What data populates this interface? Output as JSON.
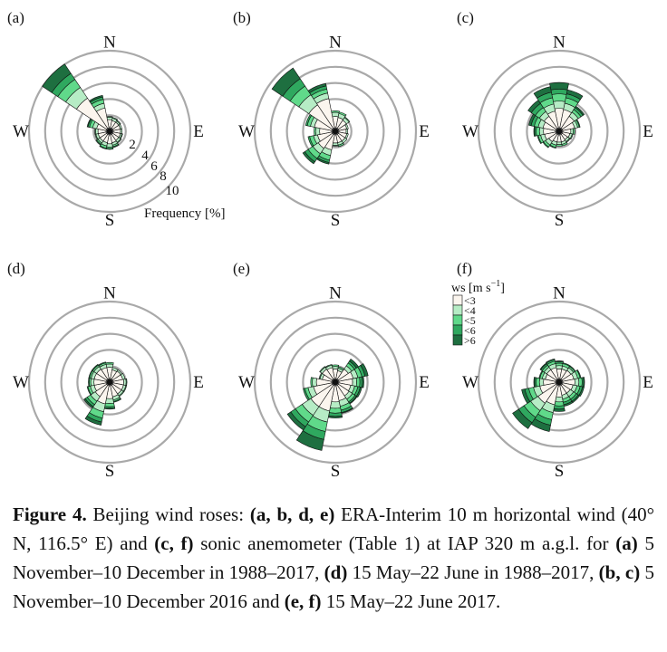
{
  "chart_data": [
    {
      "type": "windrose",
      "panel": "(a)",
      "compass": [
        "N",
        "E",
        "S",
        "W"
      ],
      "rings": [
        2,
        4,
        6,
        8,
        10
      ],
      "ring_labels_shown": true,
      "axis_label": "Frequency [%]",
      "bins": [
        "<3",
        "<4",
        "<5",
        "<6",
        ">6"
      ],
      "directions": [
        {
          "dir": 0,
          "values": [
            1.0,
            0.3,
            0.1,
            0.0,
            0.0
          ]
        },
        {
          "dir": 22.5,
          "values": [
            0.9,
            0.3,
            0.1,
            0.0,
            0.0
          ]
        },
        {
          "dir": 45,
          "values": [
            0.9,
            0.2,
            0.1,
            0.0,
            0.0
          ]
        },
        {
          "dir": 67.5,
          "values": [
            0.9,
            0.2,
            0.0,
            0.0,
            0.0
          ]
        },
        {
          "dir": 90,
          "values": [
            0.9,
            0.2,
            0.0,
            0.0,
            0.0
          ]
        },
        {
          "dir": 112.5,
          "values": [
            0.9,
            0.2,
            0.1,
            0.0,
            0.0
          ]
        },
        {
          "dir": 135,
          "values": [
            0.9,
            0.3,
            0.1,
            0.0,
            0.0
          ]
        },
        {
          "dir": 157.5,
          "values": [
            1.0,
            0.3,
            0.2,
            0.1,
            0.0
          ]
        },
        {
          "dir": 180,
          "values": [
            1.1,
            0.4,
            0.2,
            0.1,
            0.0
          ]
        },
        {
          "dir": 202.5,
          "values": [
            1.0,
            0.4,
            0.3,
            0.1,
            0.0
          ]
        },
        {
          "dir": 225,
          "values": [
            1.0,
            0.3,
            0.2,
            0.1,
            0.0
          ]
        },
        {
          "dir": 247.5,
          "values": [
            1.0,
            0.3,
            0.1,
            0.0,
            0.0
          ]
        },
        {
          "dir": 270,
          "values": [
            1.0,
            0.3,
            0.1,
            0.0,
            0.0
          ]
        },
        {
          "dir": 292.5,
          "values": [
            1.2,
            0.5,
            0.4,
            0.2,
            0.1
          ]
        },
        {
          "dir": 315,
          "values": [
            4.5,
            1.6,
            1.2,
            0.9,
            1.4
          ]
        },
        {
          "dir": 337.5,
          "values": [
            2.5,
            0.6,
            0.5,
            0.3,
            0.2
          ]
        }
      ]
    },
    {
      "type": "windrose",
      "panel": "(b)",
      "compass": [
        "N",
        "E",
        "S",
        "W"
      ],
      "rings": [
        2,
        4,
        6,
        8,
        10
      ],
      "bins": [
        "<3",
        "<4",
        "<5",
        "<6",
        ">6"
      ],
      "directions": [
        {
          "dir": 0,
          "values": [
            1.4,
            0.5,
            0.2,
            0.0,
            0.0
          ]
        },
        {
          "dir": 22.5,
          "values": [
            1.3,
            0.5,
            0.2,
            0.0,
            0.0
          ]
        },
        {
          "dir": 45,
          "values": [
            1.2,
            0.4,
            0.1,
            0.0,
            0.0
          ]
        },
        {
          "dir": 67.5,
          "values": [
            1.0,
            0.2,
            0.0,
            0.0,
            0.0
          ]
        },
        {
          "dir": 90,
          "values": [
            0.9,
            0.2,
            0.0,
            0.0,
            0.0
          ]
        },
        {
          "dir": 112.5,
          "values": [
            1.0,
            0.2,
            0.0,
            0.0,
            0.0
          ]
        },
        {
          "dir": 135,
          "values": [
            1.0,
            0.3,
            0.0,
            0.0,
            0.0
          ]
        },
        {
          "dir": 157.5,
          "values": [
            1.0,
            0.3,
            0.2,
            0.0,
            0.0
          ]
        },
        {
          "dir": 180,
          "values": [
            1.0,
            0.3,
            0.1,
            0.0,
            0.0
          ]
        },
        {
          "dir": 202.5,
          "values": [
            1.9,
            0.7,
            0.6,
            0.3,
            0.2
          ]
        },
        {
          "dir": 225,
          "values": [
            2.1,
            0.8,
            0.7,
            0.5,
            0.3
          ]
        },
        {
          "dir": 247.5,
          "values": [
            1.8,
            0.5,
            0.5,
            0.2,
            0.0
          ]
        },
        {
          "dir": 270,
          "values": [
            1.5,
            0.5,
            0.2,
            0.0,
            0.0
          ]
        },
        {
          "dir": 292.5,
          "values": [
            2.2,
            0.5,
            0.4,
            0.2,
            0.0
          ]
        },
        {
          "dir": 315,
          "values": [
            3.5,
            1.5,
            1.3,
            1.1,
            1.6
          ]
        },
        {
          "dir": 337.5,
          "values": [
            3.7,
            0.7,
            0.5,
            0.4,
            0.3
          ]
        }
      ]
    },
    {
      "type": "windrose",
      "panel": "(c)",
      "compass": [
        "N",
        "E",
        "S",
        "W"
      ],
      "rings": [
        2,
        4,
        6,
        8,
        10
      ],
      "bins": [
        "<3",
        "<4",
        "<5",
        "<6",
        ">6"
      ],
      "directions": [
        {
          "dir": 0,
          "values": [
            2.4,
            0.9,
            0.9,
            0.6,
            0.8
          ]
        },
        {
          "dir": 22.5,
          "values": [
            2.3,
            0.8,
            0.7,
            0.5,
            0.5
          ]
        },
        {
          "dir": 45,
          "values": [
            1.8,
            0.6,
            0.4,
            0.3,
            0.2
          ]
        },
        {
          "dir": 67.5,
          "values": [
            1.5,
            0.4,
            0.2,
            0.1,
            0.0
          ]
        },
        {
          "dir": 90,
          "values": [
            1.0,
            0.3,
            0.2,
            0.0,
            0.0
          ]
        },
        {
          "dir": 112.5,
          "values": [
            0.9,
            0.3,
            0.1,
            0.0,
            0.0
          ]
        },
        {
          "dir": 135,
          "values": [
            0.8,
            0.3,
            0.1,
            0.0,
            0.0
          ]
        },
        {
          "dir": 157.5,
          "values": [
            0.9,
            0.3,
            0.2,
            0.0,
            0.0
          ]
        },
        {
          "dir": 180,
          "values": [
            0.9,
            0.3,
            0.2,
            0.0,
            0.0
          ]
        },
        {
          "dir": 202.5,
          "values": [
            0.9,
            0.4,
            0.3,
            0.1,
            0.0
          ]
        },
        {
          "dir": 225,
          "values": [
            1.1,
            0.5,
            0.3,
            0.1,
            0.0
          ]
        },
        {
          "dir": 247.5,
          "values": [
            1.4,
            0.5,
            0.3,
            0.1,
            0.0
          ]
        },
        {
          "dir": 270,
          "values": [
            1.5,
            0.5,
            0.4,
            0.2,
            0.1
          ]
        },
        {
          "dir": 292.5,
          "values": [
            1.6,
            0.6,
            0.5,
            0.4,
            0.3
          ]
        },
        {
          "dir": 315,
          "values": [
            1.8,
            0.7,
            0.6,
            0.6,
            0.5
          ]
        },
        {
          "dir": 337.5,
          "values": [
            2.1,
            0.9,
            0.8,
            0.7,
            0.7
          ]
        }
      ]
    },
    {
      "type": "windrose",
      "panel": "(d)",
      "compass": [
        "N",
        "E",
        "S",
        "W"
      ],
      "rings": [
        2,
        4,
        6,
        8,
        10
      ],
      "bins": [
        "<3",
        "<4",
        "<5",
        "<6",
        ">6"
      ],
      "directions": [
        {
          "dir": 0,
          "values": [
            1.4,
            0.4,
            0.2,
            0.0,
            0.0
          ]
        },
        {
          "dir": 22.5,
          "values": [
            1.1,
            0.3,
            0.0,
            0.0,
            0.0
          ]
        },
        {
          "dir": 45,
          "values": [
            1.2,
            0.2,
            0.0,
            0.0,
            0.0
          ]
        },
        {
          "dir": 67.5,
          "values": [
            1.2,
            0.3,
            0.0,
            0.0,
            0.0
          ]
        },
        {
          "dir": 90,
          "values": [
            1.3,
            0.3,
            0.1,
            0.0,
            0.0
          ]
        },
        {
          "dir": 112.5,
          "values": [
            1.3,
            0.3,
            0.1,
            0.0,
            0.0
          ]
        },
        {
          "dir": 135,
          "values": [
            1.3,
            0.3,
            0.1,
            0.0,
            0.0
          ]
        },
        {
          "dir": 157.5,
          "values": [
            1.4,
            0.4,
            0.2,
            0.1,
            0.0
          ]
        },
        {
          "dir": 180,
          "values": [
            1.6,
            0.6,
            0.4,
            0.2,
            0.1
          ]
        },
        {
          "dir": 202.5,
          "values": [
            2.3,
            1.0,
            0.8,
            0.5,
            0.4
          ]
        },
        {
          "dir": 225,
          "values": [
            1.7,
            0.7,
            0.5,
            0.3,
            0.2
          ]
        },
        {
          "dir": 247.5,
          "values": [
            1.5,
            0.5,
            0.3,
            0.1,
            0.0
          ]
        },
        {
          "dir": 270,
          "values": [
            1.5,
            0.4,
            0.2,
            0.1,
            0.0
          ]
        },
        {
          "dir": 292.5,
          "values": [
            1.5,
            0.4,
            0.2,
            0.1,
            0.0
          ]
        },
        {
          "dir": 315,
          "values": [
            1.5,
            0.4,
            0.2,
            0.1,
            0.0
          ]
        },
        {
          "dir": 337.5,
          "values": [
            1.4,
            0.4,
            0.2,
            0.1,
            0.0
          ]
        }
      ]
    },
    {
      "type": "windrose",
      "panel": "(e)",
      "compass": [
        "N",
        "E",
        "S",
        "W"
      ],
      "rings": [
        2,
        4,
        6,
        8,
        10
      ],
      "bins": [
        "<3",
        "<4",
        "<5",
        "<6",
        ">6"
      ],
      "directions": [
        {
          "dir": 0,
          "values": [
            1.2,
            0.3,
            0.2,
            0.0,
            0.0
          ]
        },
        {
          "dir": 22.5,
          "values": [
            1.0,
            0.3,
            0.2,
            0.0,
            0.0
          ]
        },
        {
          "dir": 45,
          "values": [
            1.5,
            0.5,
            0.4,
            0.3,
            0.3
          ]
        },
        {
          "dir": 67.5,
          "values": [
            1.8,
            0.6,
            0.5,
            0.4,
            0.4
          ]
        },
        {
          "dir": 90,
          "values": [
            1.7,
            0.5,
            0.4,
            0.3,
            0.2
          ]
        },
        {
          "dir": 112.5,
          "values": [
            1.5,
            0.5,
            0.4,
            0.3,
            0.2
          ]
        },
        {
          "dir": 135,
          "values": [
            1.6,
            0.5,
            0.4,
            0.2,
            0.1
          ]
        },
        {
          "dir": 157.5,
          "values": [
            1.9,
            0.7,
            0.5,
            0.3,
            0.1
          ]
        },
        {
          "dir": 180,
          "values": [
            2.0,
            0.8,
            0.6,
            0.4,
            0.2
          ]
        },
        {
          "dir": 202.5,
          "values": [
            3.2,
            1.4,
            1.2,
            1.0,
            1.4
          ]
        },
        {
          "dir": 225,
          "values": [
            3.2,
            1.3,
            1.0,
            0.7,
            0.5
          ]
        },
        {
          "dir": 247.5,
          "values": [
            2.3,
            0.7,
            0.4,
            0.2,
            0.0
          ]
        },
        {
          "dir": 270,
          "values": [
            1.9,
            0.5,
            0.2,
            0.0,
            0.0
          ]
        },
        {
          "dir": 292.5,
          "values": [
            1.2,
            0.3,
            0.1,
            0.0,
            0.0
          ]
        },
        {
          "dir": 315,
          "values": [
            1.5,
            0.3,
            0.1,
            0.0,
            0.0
          ]
        },
        {
          "dir": 337.5,
          "values": [
            1.4,
            0.3,
            0.1,
            0.0,
            0.0
          ]
        }
      ]
    },
    {
      "type": "windrose",
      "panel": "(f)",
      "compass": [
        "N",
        "E",
        "S",
        "W"
      ],
      "rings": [
        2,
        4,
        6,
        8,
        10
      ],
      "legend_shown": true,
      "bins": [
        "<3",
        "<4",
        "<5",
        "<6",
        ">6"
      ],
      "directions": [
        {
          "dir": 0,
          "values": [
            1.2,
            0.4,
            0.3,
            0.2,
            0.1
          ]
        },
        {
          "dir": 22.5,
          "values": [
            1.2,
            0.4,
            0.3,
            0.1,
            0.0
          ]
        },
        {
          "dir": 45,
          "values": [
            1.3,
            0.4,
            0.2,
            0.1,
            0.0
          ]
        },
        {
          "dir": 67.5,
          "values": [
            1.4,
            0.5,
            0.3,
            0.1,
            0.0
          ]
        },
        {
          "dir": 90,
          "values": [
            1.5,
            0.5,
            0.4,
            0.2,
            0.1
          ]
        },
        {
          "dir": 112.5,
          "values": [
            1.3,
            0.5,
            0.4,
            0.3,
            0.2
          ]
        },
        {
          "dir": 135,
          "values": [
            1.2,
            0.5,
            0.4,
            0.3,
            0.2
          ]
        },
        {
          "dir": 157.5,
          "values": [
            1.2,
            0.5,
            0.4,
            0.3,
            0.2
          ]
        },
        {
          "dir": 180,
          "values": [
            1.4,
            0.6,
            0.5,
            0.4,
            0.3
          ]
        },
        {
          "dir": 202.5,
          "values": [
            2.4,
            1.0,
            0.9,
            0.7,
            0.8
          ]
        },
        {
          "dir": 225,
          "values": [
            2.7,
            1.1,
            1.0,
            0.8,
            0.9
          ]
        },
        {
          "dir": 247.5,
          "values": [
            2.0,
            0.8,
            0.6,
            0.5,
            0.4
          ]
        },
        {
          "dir": 270,
          "values": [
            1.5,
            0.5,
            0.4,
            0.2,
            0.1
          ]
        },
        {
          "dir": 292.5,
          "values": [
            1.3,
            0.4,
            0.3,
            0.1,
            0.0
          ]
        },
        {
          "dir": 315,
          "values": [
            1.4,
            0.4,
            0.3,
            0.2,
            0.1
          ]
        },
        {
          "dir": 337.5,
          "values": [
            1.4,
            0.5,
            0.3,
            0.2,
            0.1
          ]
        }
      ]
    }
  ],
  "legend": {
    "title_text": "ws [m s",
    "title_sup": "−1",
    "title_end": "]",
    "labels": [
      "<3",
      "<4",
      "<5",
      "<6",
      ">6"
    ],
    "colors": [
      "#fbf5ee",
      "#b6ecc5",
      "#60d98a",
      "#2fa85f",
      "#1e6f40"
    ]
  },
  "caption": {
    "fig_label": "Figure 4.",
    "t1": " Beijing wind roses: ",
    "b1": "(a, b, d, e)",
    "t2": " ERA-Interim 10 m horizontal wind (40° N, 116.5° E) and ",
    "b2": "(c, f)",
    "t3": " sonic anemometer (Table 1) at IAP 320 m a.g.l. for ",
    "b3": "(a)",
    "t4": " 5 November–10 December in 1988–2017, ",
    "b4": "(d)",
    "t5": " 15 May–22 June in 1988–2017, ",
    "b5": "(b, c)",
    "t6": " 5 November–10 December 2016 and ",
    "b6": "(e, f)",
    "t7": " 15 May–22 June 2017."
  }
}
